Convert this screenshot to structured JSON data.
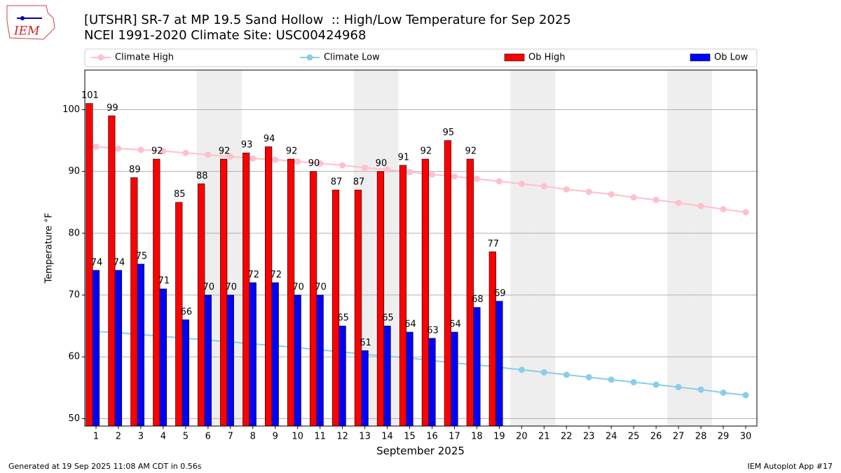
{
  "chart_data": {
    "type": "bar",
    "title": "[UTSHR] SR-7 at MP 19.5 Sand Hollow  :: High/Low Temperature for Sep 2025",
    "subtitle": "NCEI 1991-2020 Climate Site: USC00424968",
    "logo_text": "IEM",
    "xlabel": "September 2025",
    "ylabel": "Temperature °F",
    "footer_left": "Generated at 19 Sep 2025 11:08 AM CDT in 0.56s",
    "footer_right": "IEM Autoplot App #17",
    "x": [
      1,
      2,
      3,
      4,
      5,
      6,
      7,
      8,
      9,
      10,
      11,
      12,
      13,
      14,
      15,
      16,
      17,
      18,
      19,
      20,
      21,
      22,
      23,
      24,
      25,
      26,
      27,
      28,
      29,
      30
    ],
    "xlim": [
      0.5,
      30.5
    ],
    "xticks": [
      1,
      2,
      3,
      4,
      5,
      6,
      7,
      8,
      9,
      10,
      11,
      12,
      13,
      14,
      15,
      16,
      17,
      18,
      19,
      20,
      21,
      22,
      23,
      24,
      25,
      26,
      27,
      28,
      29,
      30
    ],
    "ylim": [
      48.8,
      106.4
    ],
    "yticks": [
      50,
      60,
      70,
      80,
      90,
      100
    ],
    "grid": true,
    "shaded_days": [
      6,
      7,
      13,
      14,
      20,
      21,
      27,
      28
    ],
    "series": [
      {
        "name": "Climate High",
        "kind": "line",
        "color": "#ffc0cb",
        "values": [
          94.0,
          93.7,
          93.5,
          93.3,
          93.0,
          92.7,
          92.4,
          92.1,
          91.9,
          91.6,
          91.3,
          91.0,
          90.6,
          90.3,
          89.9,
          89.5,
          89.2,
          88.8,
          88.4,
          88.0,
          87.6,
          87.1,
          86.7,
          86.3,
          85.8,
          85.4,
          84.9,
          84.4,
          83.9,
          83.4
        ]
      },
      {
        "name": "Climate Low",
        "kind": "line",
        "color": "#87ceeb",
        "values": [
          64.1,
          63.9,
          63.6,
          63.3,
          63.0,
          62.7,
          62.4,
          62.1,
          61.8,
          61.5,
          61.1,
          60.8,
          60.4,
          60.1,
          59.8,
          59.4,
          59.0,
          58.7,
          58.3,
          57.9,
          57.5,
          57.1,
          56.7,
          56.3,
          55.9,
          55.5,
          55.1,
          54.7,
          54.2,
          53.8
        ]
      },
      {
        "name": "Ob High",
        "kind": "bar",
        "color": "#ff0000",
        "values": [
          101,
          99,
          89,
          92,
          85,
          88,
          92,
          93,
          94,
          92,
          90,
          87,
          87,
          90,
          91,
          92,
          95,
          92,
          77,
          null,
          null,
          null,
          null,
          null,
          null,
          null,
          null,
          null,
          null,
          null
        ]
      },
      {
        "name": "Ob Low",
        "kind": "bar",
        "color": "#0000ff",
        "values": [
          74,
          74,
          75,
          71,
          66,
          70,
          70,
          72,
          72,
          70,
          70,
          65,
          61,
          65,
          64,
          63,
          64,
          68,
          69,
          null,
          null,
          null,
          null,
          null,
          null,
          null,
          null,
          null,
          null,
          null
        ]
      }
    ]
  }
}
